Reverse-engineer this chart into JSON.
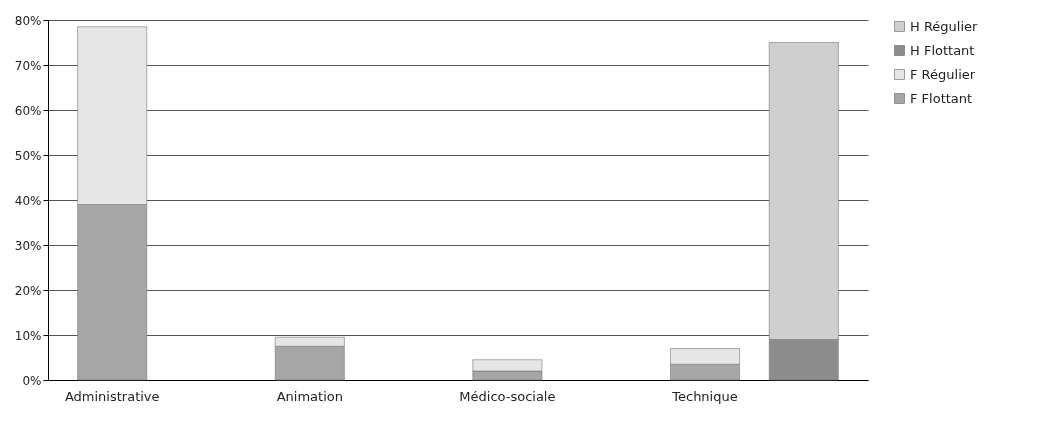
{
  "chart_data": {
    "type": "bar",
    "stacked": true,
    "categories": [
      "Administrative",
      null,
      "Animation",
      null,
      "Médico-sociale",
      null,
      "Technique",
      null
    ],
    "series": [
      {
        "name": "F Flottant",
        "color": "#a6a6a6",
        "values": [
          39,
          null,
          7.5,
          null,
          2,
          null,
          3.5,
          null
        ]
      },
      {
        "name": "F Régulier",
        "color": "#e6e6e6",
        "values": [
          39.5,
          null,
          2,
          null,
          2.5,
          null,
          3.5,
          null
        ]
      },
      {
        "name": "H Flottant",
        "color": "#8c8c8c",
        "values": [
          null,
          null,
          null,
          null,
          null,
          null,
          null,
          9
        ]
      },
      {
        "name": "H Régulier",
        "color": "#cfcfcf",
        "values": [
          null,
          null,
          null,
          null,
          null,
          null,
          null,
          66
        ]
      }
    ],
    "ylim": [
      0,
      80
    ],
    "yticks": [
      {
        "value": 0,
        "label": "0%"
      },
      {
        "value": 10,
        "label": "10%"
      },
      {
        "value": 20,
        "label": "20%"
      },
      {
        "value": 30,
        "label": "30%"
      },
      {
        "value": 40,
        "label": "40%"
      },
      {
        "value": 50,
        "label": "50%"
      },
      {
        "value": 60,
        "label": "60%"
      },
      {
        "value": 70,
        "label": "70%"
      },
      {
        "value": 80,
        "label": "80%"
      }
    ],
    "grid": "y",
    "legend": "right"
  }
}
